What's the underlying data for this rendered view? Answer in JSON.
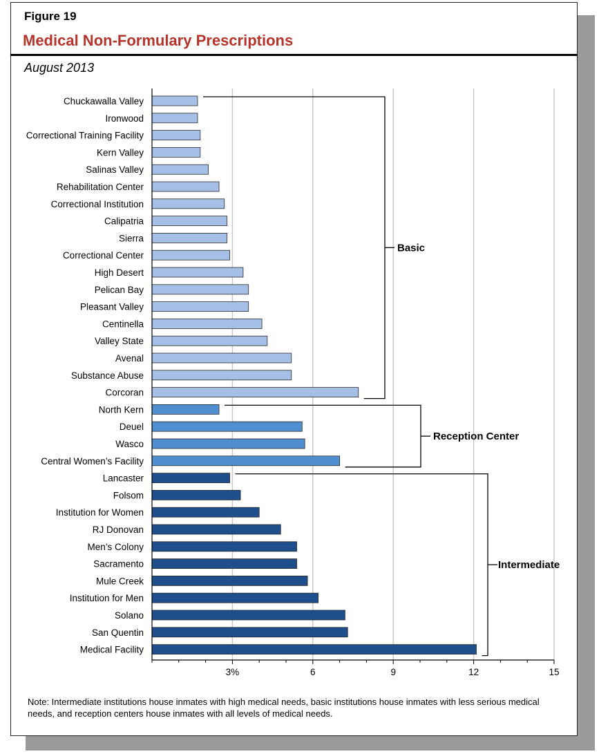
{
  "header": {
    "figure_label": "Figure 19",
    "title": "Medical Non-Formulary Prescriptions",
    "subtitle": "August 2013"
  },
  "note": "Note: Intermediate institutions house inmates with high medical needs, basic institutions house inmates with less serious medical needs, and reception centers house inmates with all levels of medical needs.",
  "colors": {
    "basic": "#a6bfe6",
    "reception": "#4f8ecf",
    "intermediate": "#1f4e8c",
    "title": "#b5342c",
    "grid": "#c8c8c8"
  },
  "chart_data": {
    "type": "bar",
    "orientation": "horizontal",
    "xlim": [
      0,
      15
    ],
    "x_ticks": [
      "3%",
      "6",
      "9",
      "12",
      "15"
    ],
    "x_tick_values": [
      3,
      6,
      9,
      12,
      15
    ],
    "grid": true,
    "categories": [
      "Chuckawalla Valley",
      "Ironwood",
      "Correctional Training Facility",
      "Kern Valley",
      "Salinas Valley",
      "Rehabilitation Center",
      "Correctional Institution",
      "Calipatria",
      "Sierra",
      "Correctional Center",
      "High Desert",
      "Pelican Bay",
      "Pleasant Valley",
      "Centinella",
      "Valley State",
      "Avenal",
      "Substance Abuse",
      "Corcoran",
      "North Kern",
      "Deuel",
      "Wasco",
      "Central Women’s Facility",
      "Lancaster",
      "Folsom",
      "Institution for Women",
      "RJ Donovan",
      "Men’s Colony",
      "Sacramento",
      "Mule Creek",
      "Institution for Men",
      "Solano",
      "San Quentin",
      "Medical Facility"
    ],
    "values": [
      1.7,
      1.7,
      1.8,
      1.8,
      2.1,
      2.5,
      2.7,
      2.8,
      2.8,
      2.9,
      3.4,
      3.6,
      3.6,
      4.1,
      4.3,
      5.2,
      5.2,
      7.7,
      2.5,
      5.6,
      5.7,
      7.0,
      2.9,
      3.3,
      4.0,
      4.8,
      5.4,
      5.4,
      5.8,
      6.2,
      7.2,
      7.3,
      12.1
    ],
    "groups": [
      {
        "name": "Basic",
        "start": 0,
        "end": 17,
        "color_key": "basic"
      },
      {
        "name": "Reception Center",
        "start": 18,
        "end": 21,
        "color_key": "reception"
      },
      {
        "name": "Intermediate",
        "start": 22,
        "end": 32,
        "color_key": "intermediate"
      }
    ]
  }
}
